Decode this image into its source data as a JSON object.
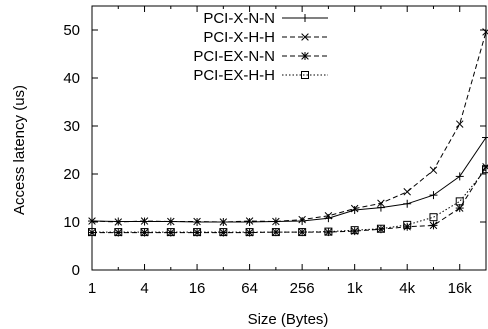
{
  "chart_data": {
    "type": "line",
    "xlabel": "Size (Bytes)",
    "ylabel": "Access latency (us)",
    "x_scale": "log2",
    "x": [
      1,
      2,
      4,
      8,
      16,
      32,
      64,
      128,
      256,
      512,
      1024,
      2048,
      4096,
      8192,
      16384,
      32768
    ],
    "x_tick_values": [
      1,
      4,
      16,
      64,
      256,
      1024,
      4096,
      16384
    ],
    "x_tick_labels": [
      "1",
      "4",
      "16",
      "64",
      "256",
      "1k",
      "4k",
      "16k"
    ],
    "y_ticks": [
      0,
      10,
      20,
      30,
      40,
      50
    ],
    "ylim": [
      0,
      55
    ],
    "xlim": [
      1,
      32768
    ],
    "grid": false,
    "legend_position": "top-center",
    "series": [
      {
        "name": "PCI-X-N-N",
        "marker": "plus",
        "dash": "solid",
        "values": [
          10.2,
          10.1,
          10.1,
          10.1,
          10.0,
          10.0,
          10.0,
          10.1,
          10.2,
          10.8,
          12.5,
          13.0,
          13.8,
          15.6,
          19.5,
          27.6
        ]
      },
      {
        "name": "PCI-X-H-H",
        "marker": "cross",
        "dash": "dashed",
        "values": [
          10.2,
          10.0,
          10.2,
          10.1,
          10.1,
          10.0,
          10.2,
          10.1,
          10.5,
          11.3,
          12.8,
          13.9,
          16.3,
          20.8,
          30.4,
          49.6
        ]
      },
      {
        "name": "PCI-EX-N-N",
        "marker": "star",
        "dash": "dashed",
        "values": [
          7.8,
          7.8,
          7.8,
          7.8,
          7.8,
          7.8,
          7.8,
          7.9,
          7.9,
          7.9,
          8.1,
          8.5,
          9.0,
          9.3,
          12.9,
          21.5
        ]
      },
      {
        "name": "PCI-EX-H-H",
        "marker": "square",
        "dash": "dotted",
        "values": [
          7.9,
          7.9,
          7.9,
          7.9,
          7.9,
          7.9,
          7.9,
          7.9,
          7.9,
          8.0,
          8.3,
          8.6,
          9.4,
          11.0,
          14.3,
          21.0
        ]
      }
    ]
  }
}
